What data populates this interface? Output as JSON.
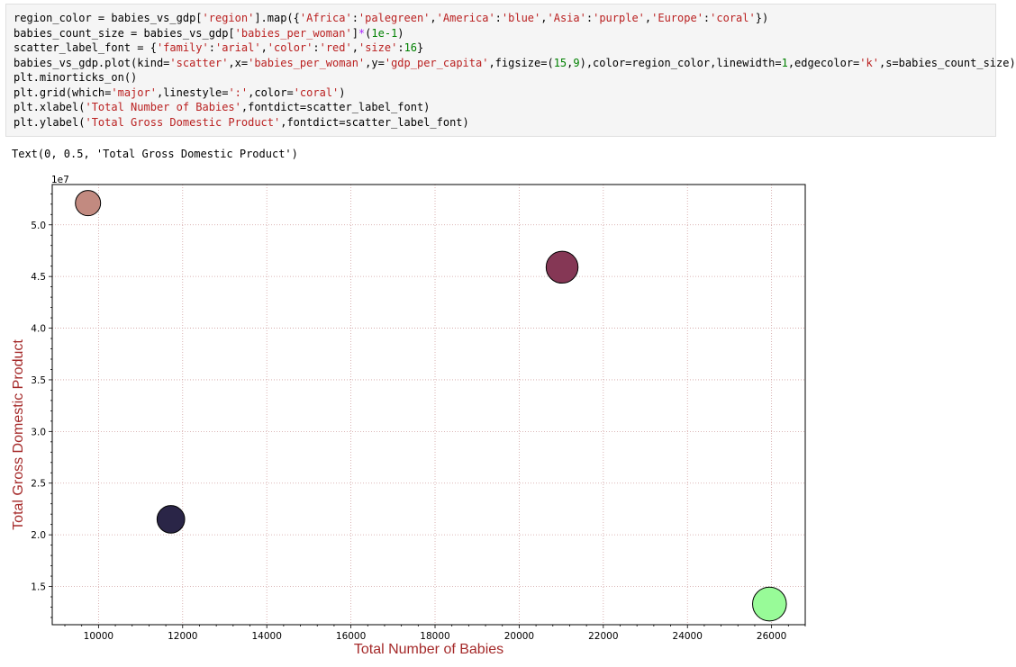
{
  "cell": {
    "code_lines": [
      "region_color = babies_vs_gdp['region'].map({'Africa':'palegreen','America':'blue','Asia':'purple','Europe':'coral'})",
      "babies_count_size = babies_vs_gdp['babies_per_woman']*(1e-1)",
      "scatter_label_font = {'family':'arial','color':'red','size':16}",
      "babies_vs_gdp.plot(kind='scatter',x='babies_per_woman',y='gdp_per_capita',figsize=(15,9),color=region_color,linewidth=1,edgecolor='k',s=babies_count_size)",
      "plt.minorticks_on()",
      "plt.grid(which='major',linestyle=':',color='coral')",
      "plt.xlabel('Total Number of Babies',fontdict=scatter_label_font)",
      "plt.ylabel('Total Gross Domestic Product',fontdict=scatter_label_font)"
    ],
    "output_text": "Text(0, 0.5, 'Total Gross Domestic Product')"
  },
  "chart_data": {
    "type": "scatter",
    "xlabel": "Total Number of Babies",
    "ylabel": "Total Gross Domestic Product",
    "y_offset_label": "1e7",
    "xlim": [
      8900,
      26800
    ],
    "ylim": [
      1.13,
      5.39
    ],
    "x_ticks": [
      10000,
      12000,
      14000,
      16000,
      18000,
      20000,
      22000,
      24000,
      26000
    ],
    "y_ticks": [
      1.5,
      2.0,
      2.5,
      3.0,
      3.5,
      4.0,
      4.5,
      5.0
    ],
    "y_tick_labels": [
      "1.5",
      "2.0",
      "2.5",
      "3.0",
      "3.5",
      "4.0",
      "4.5",
      "5.0"
    ],
    "grid": true,
    "grid_color": "#d0a0a0",
    "label_color": "#a52a2a",
    "points": [
      {
        "x": 9750,
        "y": 5.21,
        "size": 1.0,
        "color": "#c28a80"
      },
      {
        "x": 11720,
        "y": 2.15,
        "size": 1.2,
        "color": "#2a2547"
      },
      {
        "x": 21020,
        "y": 4.59,
        "size": 1.6,
        "color": "#853755"
      },
      {
        "x": 25950,
        "y": 1.33,
        "size": 1.8,
        "color": "#98fb98"
      }
    ]
  }
}
